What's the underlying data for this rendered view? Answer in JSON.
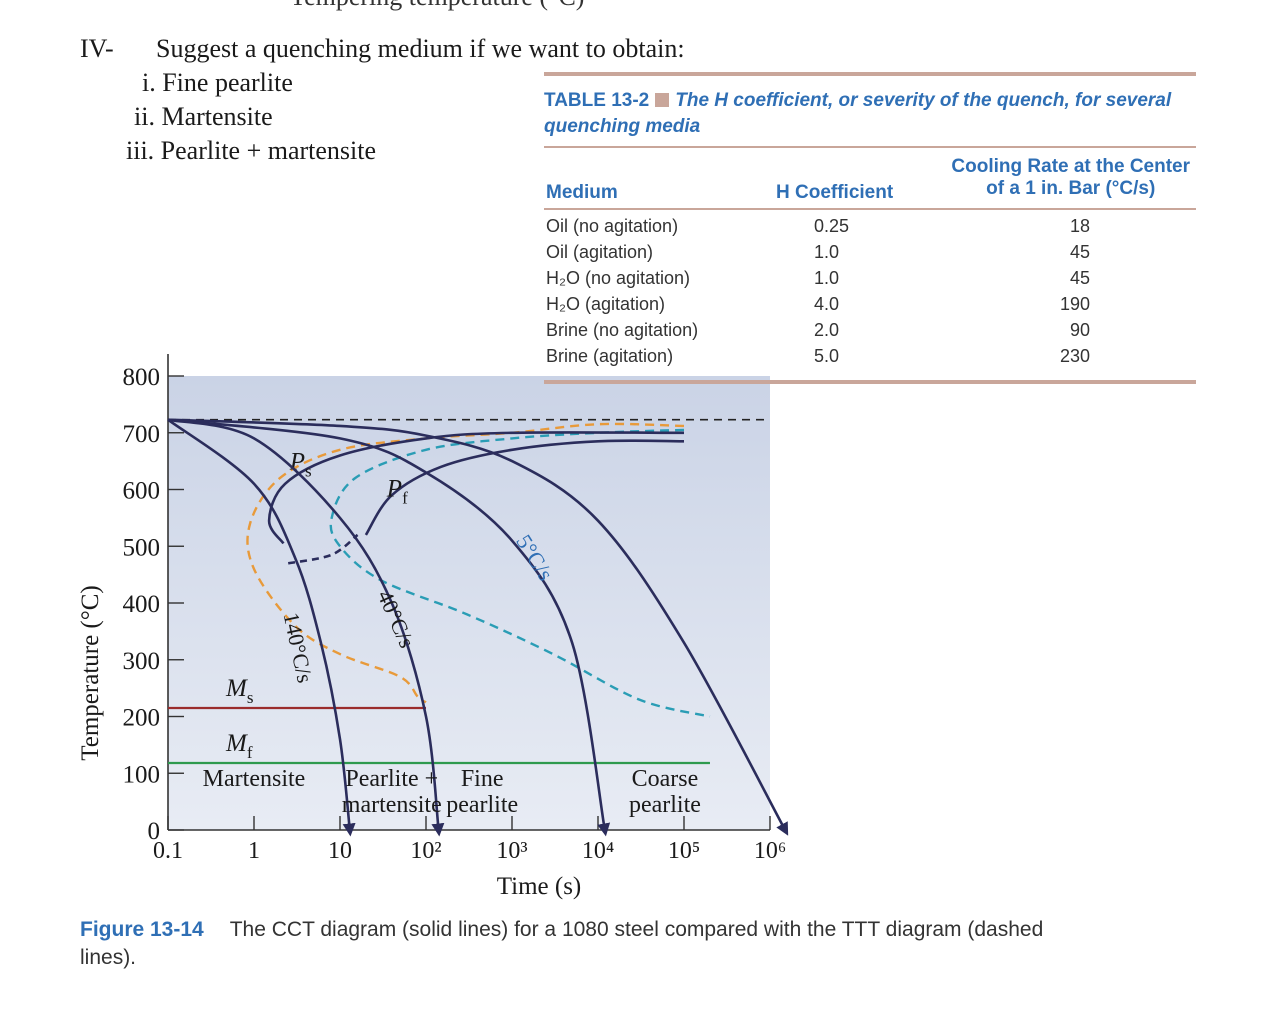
{
  "top_cut_text": "Tempering temperature (°C)",
  "question": {
    "number": "IV-",
    "text": "Suggest a quenching medium if we want to obtain:",
    "items": [
      {
        "label": "i. Fine pearlite"
      },
      {
        "label": "ii. Martensite"
      },
      {
        "label": "iii. Pearlite + martensite"
      }
    ]
  },
  "table": {
    "label": "TABLE 13-2",
    "caption_line1": "The H coefficient, or severity of the quench, for several",
    "caption_line2": "quenching media",
    "headers": {
      "medium": "Medium",
      "h": "H Coefficient",
      "cooling_line1": "Cooling Rate at the Center",
      "cooling_line2": "of a 1 in. Bar (°C/s)"
    },
    "rows": [
      {
        "medium": "Oil (no agitation)",
        "h": "0.25",
        "rate": "18"
      },
      {
        "medium": "Oil (agitation)",
        "h": "1.0",
        "rate": "45"
      },
      {
        "medium": "H₂O (no agitation)",
        "h": "1.0",
        "rate": "45"
      },
      {
        "medium": "H₂O (agitation)",
        "h": "4.0",
        "rate": "190"
      },
      {
        "medium": "Brine (no agitation)",
        "h": "2.0",
        "rate": "90"
      },
      {
        "medium": "Brine (agitation)",
        "h": "5.0",
        "rate": "230"
      }
    ],
    "colors": {
      "rule": "#c9a69a",
      "accent": "#2f6fb5"
    }
  },
  "chart_data": {
    "type": "line",
    "title": "CCT diagram (solid lines) vs TTT diagram (dashed lines), 1080 steel",
    "xlabel": "Time (s)",
    "ylabel": "Temperature (°C)",
    "x_scale": "log",
    "xlim": [
      0.1,
      1000000
    ],
    "ylim": [
      0,
      800
    ],
    "x_ticks": [
      {
        "value": 0.1,
        "label": "0.1"
      },
      {
        "value": 1,
        "label": "1"
      },
      {
        "value": 10,
        "label": "10"
      },
      {
        "value": 100,
        "label": "10²"
      },
      {
        "value": 1000,
        "label": "10³"
      },
      {
        "value": 10000,
        "label": "10⁴"
      },
      {
        "value": 100000,
        "label": "10⁵"
      },
      {
        "value": 1000000,
        "label": "10⁶"
      }
    ],
    "y_ticks": [
      {
        "value": 0,
        "label": "0"
      },
      {
        "value": 100,
        "label": "100"
      },
      {
        "value": 200,
        "label": "200"
      },
      {
        "value": 300,
        "label": "300"
      },
      {
        "value": 400,
        "label": "400"
      },
      {
        "value": 500,
        "label": "500"
      },
      {
        "value": 600,
        "label": "600"
      },
      {
        "value": 700,
        "label": "700"
      },
      {
        "value": 800,
        "label": "800"
      }
    ],
    "eutectoid_temperature": 723,
    "horizontal_lines": [
      {
        "name": "Ms",
        "label": "M",
        "sub": "s",
        "value": 215,
        "x_end": 100,
        "color": "#9b2c2c"
      },
      {
        "name": "Mf",
        "label": "M",
        "sub": "f",
        "value": 118,
        "x_end": 200000,
        "color": "#2e9a4e"
      }
    ],
    "cooling_curves": [
      {
        "rate_label": "140°C/s",
        "points": [
          [
            0.1,
            723
          ],
          [
            1,
            610
          ],
          [
            3,
            480
          ],
          [
            6,
            330
          ],
          [
            10,
            160
          ],
          [
            13,
            0
          ]
        ]
      },
      {
        "rate_label": "40°C/s",
        "points": [
          [
            0.1,
            723
          ],
          [
            1,
            690
          ],
          [
            10,
            550
          ],
          [
            40,
            400
          ],
          [
            100,
            200
          ],
          [
            140,
            0
          ]
        ]
      },
      {
        "rate_label": "5°C/s",
        "points": [
          [
            0.1,
            723
          ],
          [
            10,
            690
          ],
          [
            100,
            630
          ],
          [
            1000,
            510
          ],
          [
            5000,
            330
          ],
          [
            12000,
            0
          ]
        ]
      },
      {
        "rate_label": "",
        "points": [
          [
            0.1,
            723
          ],
          [
            10,
            712
          ],
          [
            100,
            695
          ],
          [
            1000,
            650
          ],
          [
            10000,
            545
          ],
          [
            100000,
            330
          ],
          [
            1500000,
            0
          ]
        ]
      }
    ],
    "cct_curves": [
      {
        "name": "Ps",
        "label": "P",
        "sub": "s",
        "style": "solid",
        "points": [
          [
            2.2,
            505
          ],
          [
            1.5,
            545
          ],
          [
            2.3,
            610
          ],
          [
            10,
            660
          ],
          [
            100,
            690
          ],
          [
            1000,
            700
          ],
          [
            100000,
            700
          ]
        ]
      },
      {
        "name": "Pf",
        "label": "P",
        "sub": "f",
        "style": "solid",
        "points": [
          [
            20,
            520
          ],
          [
            40,
            590
          ],
          [
            150,
            640
          ],
          [
            1000,
            670
          ],
          [
            10000,
            685
          ],
          [
            100000,
            685
          ]
        ]
      },
      {
        "name": "Ps-dashed-nose",
        "label": "",
        "style": "dashed",
        "points": [
          [
            2.5,
            470
          ],
          [
            8,
            485
          ],
          [
            16,
            520
          ]
        ]
      }
    ],
    "ttt_curves": [
      {
        "name": "TTT start",
        "color": "#e89a3a",
        "style": "dashed",
        "points": [
          [
            100000,
            712
          ],
          [
            10000,
            715
          ],
          [
            1000,
            700
          ],
          [
            100,
            690
          ],
          [
            10,
            670
          ],
          [
            2,
            620
          ],
          [
            0.9,
            540
          ],
          [
            1,
            460
          ],
          [
            3,
            360
          ],
          [
            10,
            310
          ],
          [
            50,
            270
          ],
          [
            80,
            235
          ],
          [
            100,
            225
          ]
        ]
      },
      {
        "name": "TTT finish",
        "color": "#2a9db5",
        "style": "dashed",
        "points": [
          [
            100000,
            705
          ],
          [
            10000,
            700
          ],
          [
            1000,
            690
          ],
          [
            100,
            670
          ],
          [
            15,
            620
          ],
          [
            8,
            550
          ],
          [
            10,
            500
          ],
          [
            30,
            440
          ],
          [
            300,
            380
          ],
          [
            3000,
            310
          ],
          [
            30000,
            230
          ],
          [
            200000,
            200
          ]
        ]
      }
    ],
    "region_labels": [
      {
        "text": "Martensite"
      },
      {
        "text_line1": "Pearlite +",
        "text_line2": "martensite"
      },
      {
        "text_line1": "Fine",
        "text_line2": "pearlite"
      },
      {
        "text_line1": "Coarse",
        "text_line2": "pearlite"
      }
    ],
    "colors": {
      "cct": "#2b2d5c",
      "ttt_start": "#e89a3a",
      "ttt_finish": "#2a9db5",
      "background_top": "#cad3e6",
      "background_bottom": "#e8ecf4"
    }
  },
  "figure_caption": {
    "label": "Figure 13-14",
    "text": "The CCT diagram (solid lines) for a 1080 steel compared with the TTT diagram (dashed lines)."
  }
}
